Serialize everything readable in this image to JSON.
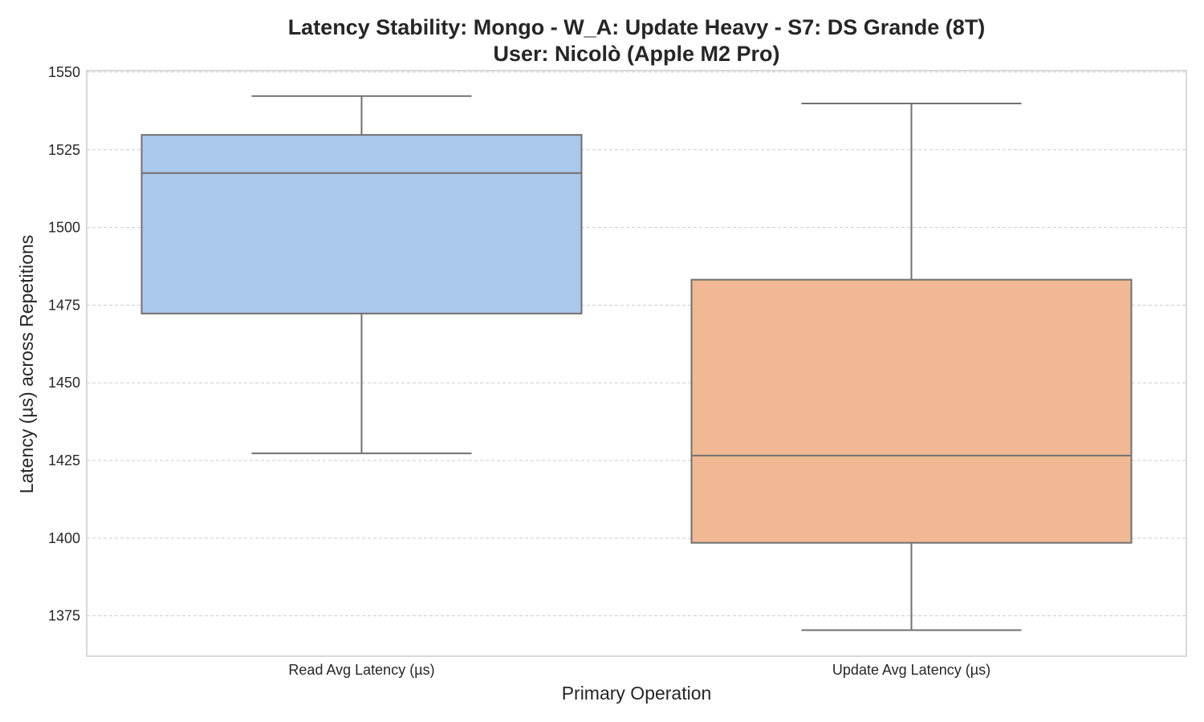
{
  "chart_data": {
    "type": "box",
    "title_line1": "Latency Stability: Mongo - W_A: Update Heavy - S7: DS Grande (8T)",
    "title_line2": "User: Nicolò (Apple M2 Pro)",
    "xlabel": "Primary Operation",
    "ylabel": "Latency (µs) across Repetitions",
    "ylim": [
      1362,
      1550.5
    ],
    "yticks": [
      1375,
      1400,
      1425,
      1450,
      1475,
      1500,
      1525,
      1550
    ],
    "grid": true,
    "categories": [
      "Read Avg Latency (µs)",
      "Update Avg Latency (µs)"
    ],
    "series": [
      {
        "category": "Read Avg Latency (µs)",
        "color": "#abc9ec",
        "whisker_low": 1427.3,
        "q1": 1472.3,
        "median": 1517.5,
        "q3": 1529.8,
        "whisker_high": 1542.3
      },
      {
        "category": "Update Avg Latency (µs)",
        "color": "#f0b893",
        "whisker_low": 1370.4,
        "q1": 1398.5,
        "median": 1426.6,
        "q3": 1483.2,
        "whisker_high": 1539.9
      }
    ]
  }
}
